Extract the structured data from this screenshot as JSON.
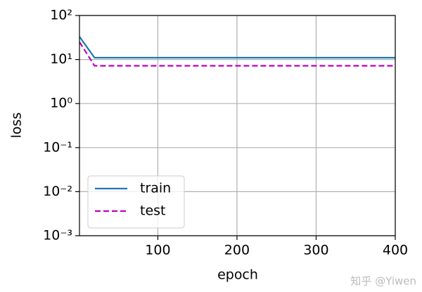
{
  "chart_data": {
    "type": "line",
    "x_label": "epoch",
    "y_label": "loss",
    "x": [
      1,
      20,
      400
    ],
    "series": [
      {
        "name": "train",
        "color": "#1f77b4",
        "dash": "solid",
        "values": [
          33,
          11,
          11
        ]
      },
      {
        "name": "test",
        "color": "#bf00bf",
        "dash": "dashed",
        "values": [
          25,
          7.2,
          7.2
        ]
      }
    ],
    "xlim": [
      1,
      400
    ],
    "xticks": [
      100,
      200,
      300,
      400
    ],
    "ylim": [
      0.001,
      100
    ],
    "y_scale": "log",
    "yticks": [
      {
        "value": 0.001,
        "label": "10⁻³"
      },
      {
        "value": 0.01,
        "label": "10⁻²"
      },
      {
        "value": 0.1,
        "label": "10⁻¹"
      },
      {
        "value": 1,
        "label": "10⁰"
      },
      {
        "value": 10,
        "label": "10¹"
      },
      {
        "value": 100,
        "label": "10²"
      }
    ],
    "grid": true,
    "legend": "lower left",
    "watermark": "知乎 @Yiwen"
  }
}
